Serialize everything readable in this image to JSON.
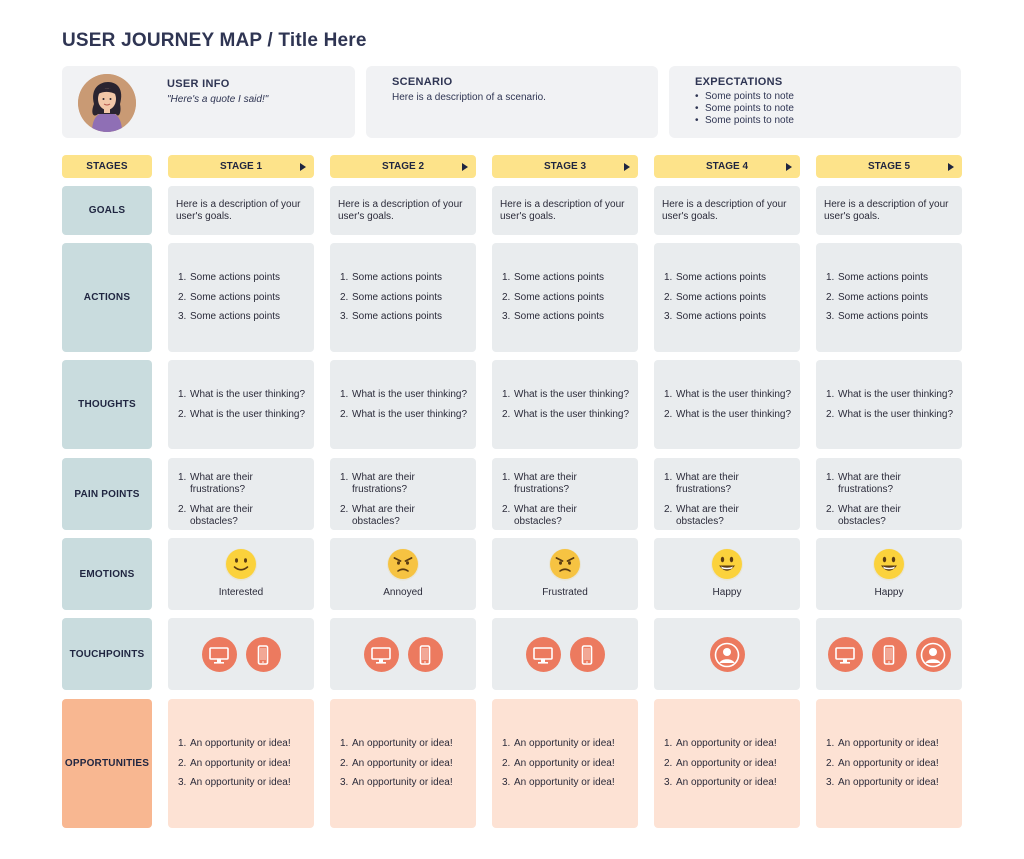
{
  "title": "USER JOURNEY MAP / Title Here",
  "user_info": {
    "heading": "USER INFO",
    "quote": "\"Here's a quote I said!\""
  },
  "scenario": {
    "heading": "SCENARIO",
    "text": "Here is a description of a scenario."
  },
  "expectations": {
    "heading": "EXPECTATIONS",
    "items": [
      "Some points to note",
      "Some points to note",
      "Some points to note"
    ]
  },
  "row_labels": {
    "stages": "STAGES",
    "goals": "GOALS",
    "actions": "ACTIONS",
    "thoughts": "THOUGHTS",
    "pain_points": "PAIN POINTS",
    "emotions": "EMOTIONS",
    "touchpoints": "TOUCHPOINTS",
    "opportunities": "OPPORTUNITIES"
  },
  "colors": {
    "label_teal": "#c9dcde",
    "stage_yellow": "#fde38a",
    "opportunity_orange": "#f8b791",
    "opportunity_peach": "#fde2d4",
    "touchpoint_red": "#ec7a5f",
    "card_grey": "#e9ecee"
  },
  "stages": [
    {
      "label": "STAGE 1",
      "goal": "Here is a description of your user's goals.",
      "actions": [
        "Some actions points",
        "Some actions points",
        "Some actions points"
      ],
      "thoughts": [
        "What is the user thinking?",
        "What is the user thinking?"
      ],
      "pain_points": [
        "What are their frustrations?",
        "What are their obstacles?"
      ],
      "emotion": {
        "icon": "smile-emoji-icon",
        "label": "Interested"
      },
      "touchpoints": [
        "desktop-icon",
        "mobile-icon"
      ],
      "opportunities": [
        "An opportunity or idea!",
        "An opportunity or idea!",
        "An opportunity or idea!"
      ]
    },
    {
      "label": "STAGE 2",
      "goal": "Here is a description of your user's goals.",
      "actions": [
        "Some actions points",
        "Some actions points",
        "Some actions points"
      ],
      "thoughts": [
        "What is the user thinking?",
        "What is the user thinking?"
      ],
      "pain_points": [
        "What are their frustrations?",
        "What are their obstacles?"
      ],
      "emotion": {
        "icon": "angry-emoji-icon",
        "label": "Annoyed"
      },
      "touchpoints": [
        "desktop-icon",
        "mobile-icon"
      ],
      "opportunities": [
        "An opportunity or idea!",
        "An opportunity or idea!",
        "An opportunity or idea!"
      ]
    },
    {
      "label": "STAGE 3",
      "goal": "Here is a description of your user's goals.",
      "actions": [
        "Some actions points",
        "Some actions points",
        "Some actions points"
      ],
      "thoughts": [
        "What is the user thinking?",
        "What is the user thinking?"
      ],
      "pain_points": [
        "What are their frustrations?",
        "What are their obstacles?"
      ],
      "emotion": {
        "icon": "angry-emoji-icon",
        "label": "Frustrated"
      },
      "touchpoints": [
        "desktop-icon",
        "mobile-icon"
      ],
      "opportunities": [
        "An opportunity or idea!",
        "An opportunity or idea!",
        "An opportunity or idea!"
      ]
    },
    {
      "label": "STAGE 4",
      "goal": "Here is a description of your user's goals.",
      "actions": [
        "Some actions points",
        "Some actions points",
        "Some actions points"
      ],
      "thoughts": [
        "What is the user thinking?",
        "What is the user thinking?"
      ],
      "pain_points": [
        "What are their frustrations?",
        "What are their obstacles?"
      ],
      "emotion": {
        "icon": "happy-emoji-icon",
        "label": "Happy"
      },
      "touchpoints": [
        "person-icon"
      ],
      "opportunities": [
        "An opportunity or idea!",
        "An opportunity or idea!",
        "An opportunity or idea!"
      ]
    },
    {
      "label": "STAGE 5",
      "goal": "Here is a description of your user's goals.",
      "actions": [
        "Some actions points",
        "Some actions points",
        "Some actions points"
      ],
      "thoughts": [
        "What is the user thinking?",
        "What is the user thinking?"
      ],
      "pain_points": [
        "What are their frustrations?",
        "What are their obstacles?"
      ],
      "emotion": {
        "icon": "happy-emoji-icon",
        "label": "Happy"
      },
      "touchpoints": [
        "desktop-icon",
        "mobile-icon",
        "person-icon"
      ],
      "opportunities": [
        "An opportunity or idea!",
        "An opportunity or idea!",
        "An opportunity or idea!"
      ]
    }
  ]
}
